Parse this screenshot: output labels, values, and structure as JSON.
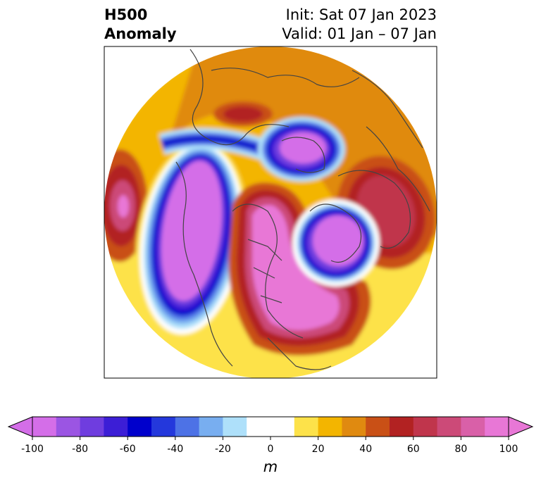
{
  "title": {
    "left_line1": "H500",
    "left_line2": "Anomaly",
    "right_line1": "Init: Sat 07 Jan 2023",
    "right_line2": "Valid: 01 Jan – 07 Jan"
  },
  "colorbar": {
    "units_label": "m",
    "tick_labels": [
      "-100",
      "-80",
      "-60",
      "-40",
      "-20",
      "0",
      "20",
      "40",
      "60",
      "80",
      "100"
    ],
    "colors": [
      "#d46ee8",
      "#9b55e3",
      "#6f3ddf",
      "#3c1ed6",
      "#0000cc",
      "#2438dc",
      "#4d72e6",
      "#78aef0",
      "#aee0fa",
      "#ffffff",
      "#ffffff",
      "#fde24a",
      "#f3b500",
      "#e08a10",
      "#c95016",
      "#b22222",
      "#c0354c",
      "#cc4a78",
      "#d960a8",
      "#e877d6"
    ],
    "extend_min_color": "#d46ee8",
    "extend_max_color": "#e877d6"
  },
  "map": {
    "projection": "north-polar-stereographic",
    "field": "500 hPa geopotential height anomaly",
    "extent_edge_color": "#000000",
    "coastline_color": "#444444"
  }
}
